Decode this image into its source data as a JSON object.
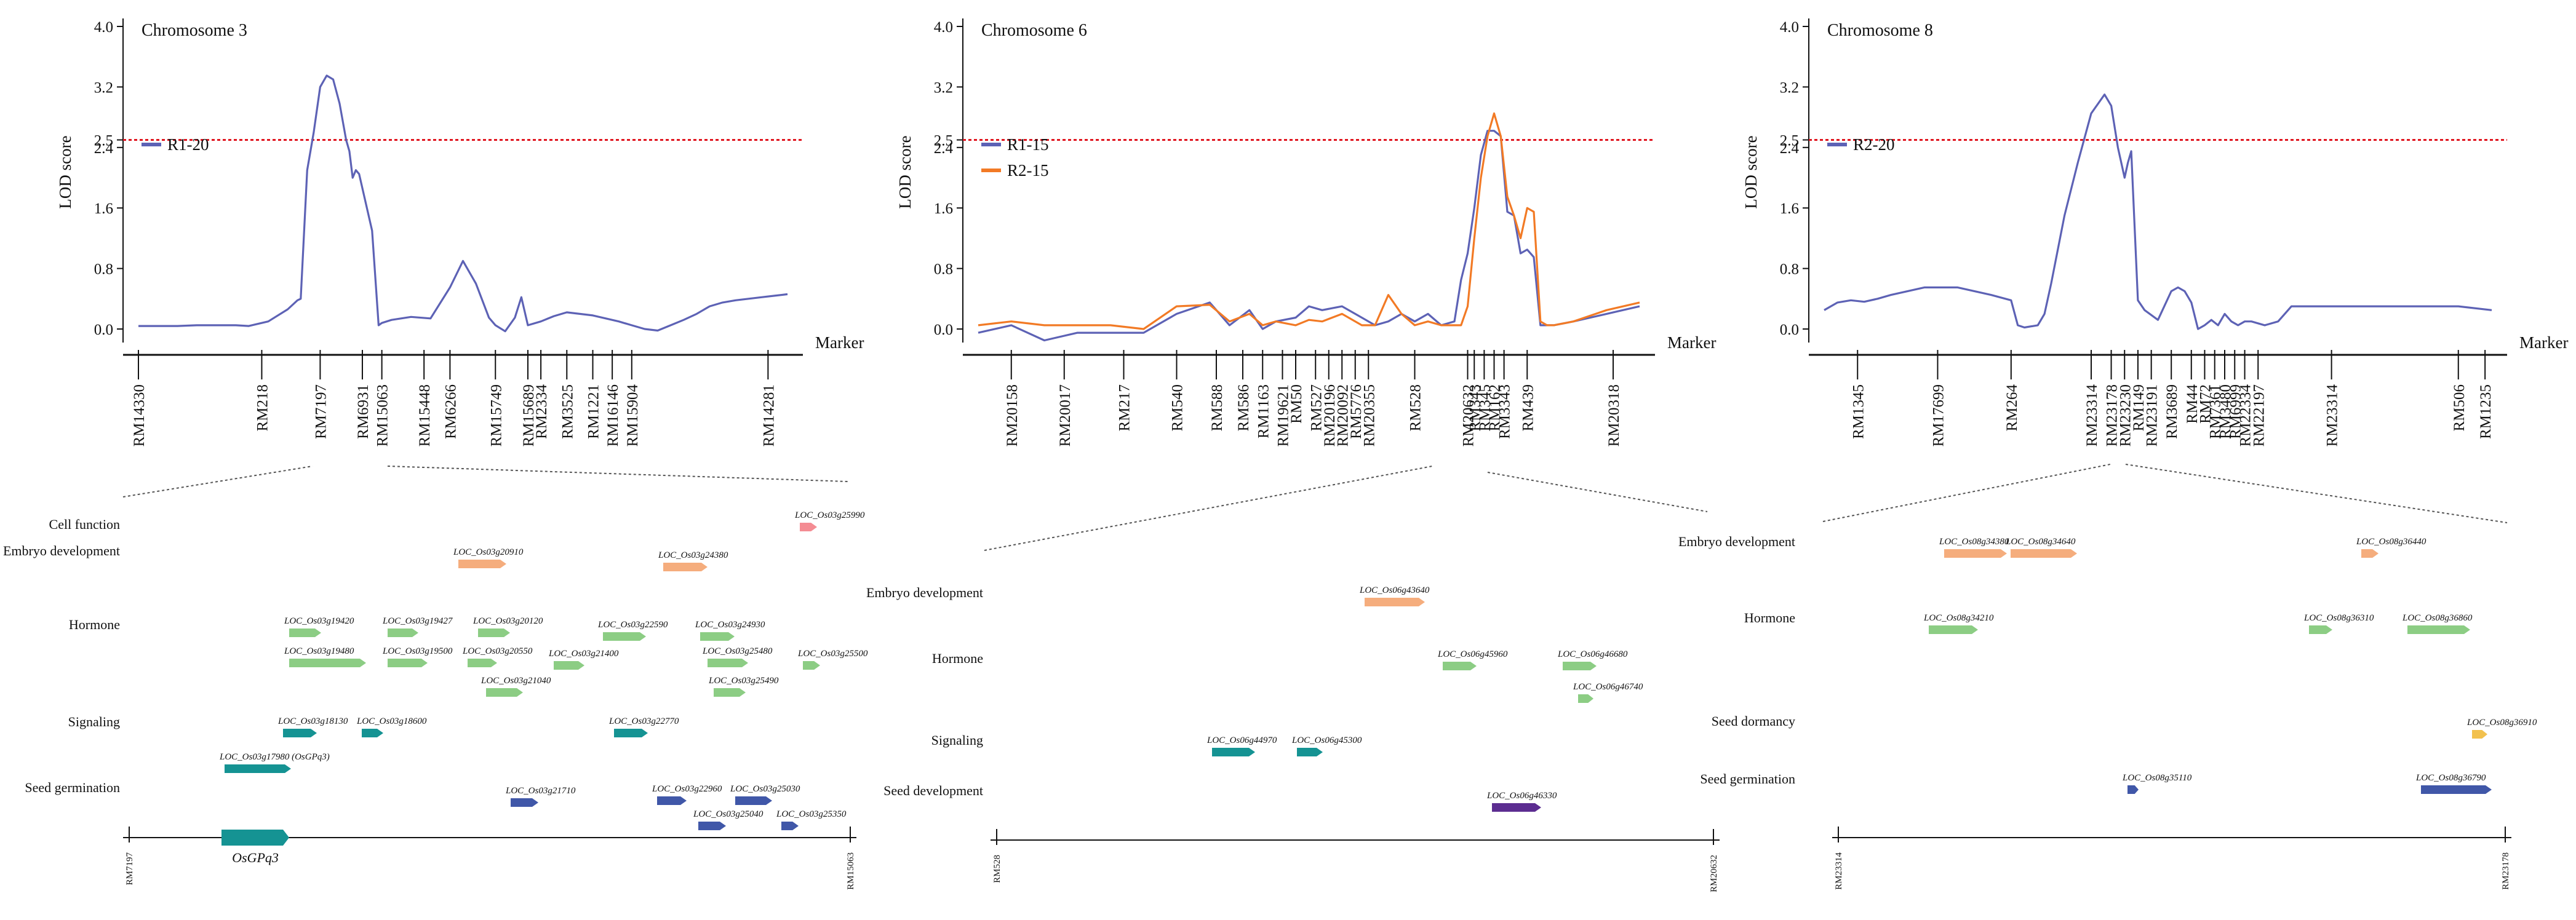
{
  "chart_data": [
    {
      "type": "line",
      "panel_label": "Chromosome 3",
      "ylabel": "LOD score",
      "xlabel": "Marker",
      "ylim": [
        -0.2,
        4.0
      ],
      "yticks": [
        "4.0",
        "3.2",
        "2.5",
        "2.4",
        "1.6",
        "0.8",
        "0.0"
      ],
      "ytick_values": [
        4.0,
        3.2,
        2.5,
        2.4,
        1.6,
        0.8,
        0.0
      ],
      "threshold": 2.5,
      "series": [
        {
          "name": "R1-20",
          "color": "#5d62b5",
          "x": [
            0,
            0.03,
            0.06,
            0.09,
            0.12,
            0.15,
            0.17,
            0.2,
            0.23,
            0.245,
            0.25,
            0.26,
            0.27,
            0.28,
            0.29,
            0.3,
            0.31,
            0.32,
            0.325,
            0.33,
            0.335,
            0.34,
            0.36,
            0.37,
            0.375,
            0.39,
            0.42,
            0.45,
            0.48,
            0.5,
            0.52,
            0.54,
            0.55,
            0.565,
            0.58,
            0.59,
            0.6,
            0.62,
            0.64,
            0.66,
            0.68,
            0.7,
            0.72,
            0.74,
            0.76,
            0.78,
            0.8,
            0.82,
            0.84,
            0.86,
            0.88,
            0.9,
            0.92,
            0.94,
            0.96,
            0.98,
            1.0
          ],
          "y": [
            0.04,
            0.04,
            0.04,
            0.05,
            0.05,
            0.05,
            0.04,
            0.1,
            0.26,
            0.38,
            0.4,
            2.1,
            2.6,
            3.2,
            3.35,
            3.3,
            2.98,
            2.5,
            2.35,
            2.0,
            2.1,
            2.05,
            1.3,
            0.05,
            0.08,
            0.12,
            0.16,
            0.14,
            0.55,
            0.9,
            0.6,
            0.15,
            0.05,
            -0.03,
            0.15,
            0.42,
            0.05,
            0.1,
            0.17,
            0.22,
            0.2,
            0.18,
            0.14,
            0.1,
            0.05,
            0.0,
            -0.02,
            0.05,
            0.12,
            0.2,
            0.3,
            0.35,
            0.38,
            0.4,
            0.42,
            0.44,
            0.46
          ]
        }
      ],
      "markers": [
        "RM14330",
        "RM218",
        "RM7197",
        "RM6931",
        "RM15063",
        "RM15448",
        "RM6266",
        "RM15749",
        "RM15689",
        "RM2334",
        "RM3525",
        "RM1221",
        "RM16146",
        "RM15904",
        "RM14281"
      ],
      "marker_positions": [
        0.0,
        0.19,
        0.28,
        0.345,
        0.375,
        0.44,
        0.48,
        0.55,
        0.6,
        0.62,
        0.66,
        0.7,
        0.73,
        0.76,
        0.97
      ]
    },
    {
      "type": "line",
      "panel_label": "Chromosome 6",
      "ylabel": "LOD score",
      "xlabel": "Marker",
      "ylim": [
        -0.2,
        4.0
      ],
      "yticks": [
        "4.0",
        "3.2",
        "2.5",
        "2.4",
        "1.6",
        "0.8",
        "0.0"
      ],
      "ytick_values": [
        4.0,
        3.2,
        2.5,
        2.4,
        1.6,
        0.8,
        0.0
      ],
      "threshold": 2.5,
      "series": [
        {
          "name": "R1-15",
          "color": "#5d62b5",
          "x": [
            0,
            0.05,
            0.1,
            0.15,
            0.2,
            0.25,
            0.3,
            0.35,
            0.38,
            0.41,
            0.43,
            0.45,
            0.48,
            0.5,
            0.52,
            0.55,
            0.58,
            0.6,
            0.62,
            0.64,
            0.66,
            0.68,
            0.7,
            0.72,
            0.73,
            0.74,
            0.75,
            0.76,
            0.77,
            0.78,
            0.79,
            0.8,
            0.81,
            0.82,
            0.83,
            0.84,
            0.85,
            0.86,
            0.87,
            0.9,
            0.95,
            1.0
          ],
          "y": [
            -0.05,
            0.05,
            -0.15,
            -0.05,
            -0.05,
            -0.05,
            0.2,
            0.35,
            0.05,
            0.25,
            0.0,
            0.1,
            0.15,
            0.3,
            0.25,
            0.3,
            0.15,
            0.05,
            0.1,
            0.2,
            0.1,
            0.2,
            0.05,
            0.1,
            0.65,
            1.0,
            1.6,
            2.3,
            2.62,
            2.62,
            2.55,
            1.55,
            1.5,
            1.0,
            1.05,
            0.95,
            0.05,
            0.05,
            0.05,
            0.1,
            0.2,
            0.3
          ]
        },
        {
          "name": "R2-15",
          "color": "#f27a25",
          "x": [
            0,
            0.05,
            0.1,
            0.15,
            0.2,
            0.25,
            0.3,
            0.35,
            0.38,
            0.41,
            0.43,
            0.45,
            0.48,
            0.5,
            0.52,
            0.55,
            0.58,
            0.6,
            0.62,
            0.64,
            0.66,
            0.68,
            0.7,
            0.72,
            0.73,
            0.74,
            0.75,
            0.76,
            0.77,
            0.78,
            0.79,
            0.8,
            0.81,
            0.82,
            0.83,
            0.84,
            0.85,
            0.86,
            0.87,
            0.9,
            0.95,
            1.0
          ],
          "y": [
            0.05,
            0.1,
            0.05,
            0.05,
            0.05,
            0.0,
            0.3,
            0.32,
            0.1,
            0.2,
            0.05,
            0.1,
            0.05,
            0.12,
            0.1,
            0.2,
            0.05,
            0.05,
            0.45,
            0.2,
            0.05,
            0.1,
            0.05,
            0.05,
            0.05,
            0.3,
            1.2,
            2.0,
            2.55,
            2.85,
            2.55,
            1.75,
            1.5,
            1.2,
            1.6,
            1.55,
            0.1,
            0.05,
            0.05,
            0.1,
            0.25,
            0.35
          ]
        }
      ],
      "markers": [
        "RM20158",
        "RM20017",
        "RM217",
        "RM540",
        "RM588",
        "RM586",
        "RM1163",
        "RM19621",
        "RM50",
        "RM527",
        "RM20196",
        "RM20092",
        "RM5776",
        "RM20355",
        "RM528",
        "RM20632",
        "RM343",
        "RM345",
        "RM162",
        "RM3343",
        "RM439",
        "RM20318"
      ],
      "marker_positions": [
        0.05,
        0.13,
        0.22,
        0.3,
        0.36,
        0.4,
        0.43,
        0.46,
        0.48,
        0.51,
        0.53,
        0.55,
        0.57,
        0.59,
        0.66,
        0.74,
        0.75,
        0.765,
        0.78,
        0.795,
        0.83,
        0.96
      ]
    },
    {
      "type": "line",
      "panel_label": "Chromosome 8",
      "ylabel": "LOD score",
      "xlabel": "Marker",
      "ylim": [
        -0.2,
        4.0
      ],
      "yticks": [
        "4.0",
        "3.2",
        "2.5",
        "2.4",
        "1.6",
        "0.8",
        "0.0"
      ],
      "ytick_values": [
        4.0,
        3.2,
        2.5,
        2.4,
        1.6,
        0.8,
        0.0
      ],
      "threshold": 2.5,
      "series": [
        {
          "name": "R2-20",
          "color": "#5d62b5",
          "x": [
            0,
            0.02,
            0.04,
            0.06,
            0.08,
            0.1,
            0.15,
            0.2,
            0.25,
            0.28,
            0.29,
            0.3,
            0.32,
            0.33,
            0.34,
            0.36,
            0.38,
            0.4,
            0.42,
            0.43,
            0.44,
            0.45,
            0.455,
            0.46,
            0.47,
            0.48,
            0.5,
            0.52,
            0.53,
            0.54,
            0.55,
            0.56,
            0.57,
            0.58,
            0.59,
            0.6,
            0.61,
            0.62,
            0.63,
            0.64,
            0.66,
            0.68,
            0.7,
            0.75,
            0.8,
            0.85,
            0.9,
            0.95,
            1.0
          ],
          "y": [
            0.25,
            0.35,
            0.38,
            0.36,
            0.4,
            0.45,
            0.55,
            0.55,
            0.45,
            0.38,
            0.05,
            0.02,
            0.05,
            0.2,
            0.6,
            1.5,
            2.2,
            2.85,
            3.1,
            2.95,
            2.4,
            2.0,
            2.2,
            2.35,
            0.38,
            0.25,
            0.12,
            0.5,
            0.55,
            0.5,
            0.35,
            0.0,
            0.05,
            0.12,
            0.05,
            0.2,
            0.1,
            0.05,
            0.1,
            0.1,
            0.05,
            0.1,
            0.3,
            0.3,
            0.3,
            0.3,
            0.3,
            0.3,
            0.25
          ]
        }
      ],
      "markers": [
        "RM1345",
        "RM17699",
        "RM264",
        "RM23314",
        "RM23178",
        "RM23230",
        "RM149",
        "RM23191",
        "RM3689",
        "RM44",
        "RM72",
        "RM7361",
        "RM3480",
        "RM6999",
        "RM22334",
        "RM22197",
        "RM23314",
        "RM506",
        "RM1235"
      ],
      "marker_positions": [
        0.05,
        0.17,
        0.28,
        0.4,
        0.43,
        0.45,
        0.47,
        0.49,
        0.52,
        0.55,
        0.57,
        0.585,
        0.6,
        0.615,
        0.63,
        0.65,
        0.76,
        0.95,
        0.99
      ]
    }
  ],
  "gene_panels": [
    {
      "region_left": "RM7197",
      "region_right": "RM15063",
      "gene_name": "OsGPq3",
      "categories": [
        "Cell function",
        "Embryo development",
        "Hormone",
        "Signaling",
        "Seed germination"
      ],
      "genes": [
        {
          "label": "LOC_Os03g25990",
          "category": "Cell function",
          "color": "#f48c93"
        },
        {
          "label": "LOC_Os03g20910",
          "category": "Embryo development",
          "color": "#f5ad7d"
        },
        {
          "label": "LOC_Os03g24380",
          "category": "Embryo development",
          "color": "#f5ad7d"
        },
        {
          "label": "LOC_Os03g19420",
          "category": "Hormone",
          "color": "#8ccd84"
        },
        {
          "label": "LOC_Os03g19427",
          "category": "Hormone",
          "color": "#8ccd84"
        },
        {
          "label": "LOC_Os03g20120",
          "category": "Hormone",
          "color": "#8ccd84"
        },
        {
          "label": "LOC_Os03g22590",
          "category": "Hormone",
          "color": "#8ccd84"
        },
        {
          "label": "LOC_Os03g24930",
          "category": "Hormone",
          "color": "#8ccd84"
        },
        {
          "label": "LOC_Os03g19480",
          "category": "Hormone",
          "color": "#8ccd84"
        },
        {
          "label": "LOC_Os03g19500",
          "category": "Hormone",
          "color": "#8ccd84"
        },
        {
          "label": "LOC_Os03g20550",
          "category": "Hormone",
          "color": "#8ccd84"
        },
        {
          "label": "LOC_Os03g21400",
          "category": "Hormone",
          "color": "#8ccd84"
        },
        {
          "label": "LOC_Os03g25480",
          "category": "Hormone",
          "color": "#8ccd84"
        },
        {
          "label": "LOC_Os03g25500",
          "category": "Hormone",
          "color": "#8ccd84"
        },
        {
          "label": "LOC_Os03g21040",
          "category": "Hormone",
          "color": "#8ccd84"
        },
        {
          "label": "LOC_Os03g25490",
          "category": "Hormone",
          "color": "#8ccd84"
        },
        {
          "label": "LOC_Os03g18130",
          "category": "Signaling",
          "color": "#159393"
        },
        {
          "label": "LOC_Os03g18600",
          "category": "Signaling",
          "color": "#159393"
        },
        {
          "label": "LOC_Os03g22770",
          "category": "Signaling",
          "color": "#159393"
        },
        {
          "label": "LOC_Os03g17980 (OsGPq3)",
          "category": "Signaling",
          "color": "#159393"
        },
        {
          "label": "LOC_Os03g21710",
          "category": "Seed germination",
          "color": "#4057a8"
        },
        {
          "label": "LOC_Os03g22960",
          "category": "Seed germination",
          "color": "#4057a8"
        },
        {
          "label": "LOC_Os03g25030",
          "category": "Seed germination",
          "color": "#4057a8"
        },
        {
          "label": "LOC_Os03g25040",
          "category": "Seed germination",
          "color": "#4057a8"
        },
        {
          "label": "LOC_Os03g25350",
          "category": "Seed germination",
          "color": "#4057a8"
        }
      ]
    },
    {
      "region_left": "RM528",
      "region_right": "RM20632",
      "categories": [
        "Embryo development",
        "Hormone",
        "Signaling",
        "Seed development"
      ],
      "genes": [
        {
          "label": "LOC_Os06g43640",
          "category": "Embryo development",
          "color": "#f5ad7d"
        },
        {
          "label": "LOC_Os06g45960",
          "category": "Hormone",
          "color": "#8ccd84"
        },
        {
          "label": "LOC_Os06g46680",
          "category": "Hormone",
          "color": "#8ccd84"
        },
        {
          "label": "LOC_Os06g46740",
          "category": "Hormone",
          "color": "#8ccd84"
        },
        {
          "label": "LOC_Os06g44970",
          "category": "Signaling",
          "color": "#159393"
        },
        {
          "label": "LOC_Os06g45300",
          "category": "Signaling",
          "color": "#159393"
        },
        {
          "label": "LOC_Os06g46330",
          "category": "Seed development",
          "color": "#5c2d91"
        }
      ]
    },
    {
      "region_left": "RM23314",
      "region_right": "RM23178",
      "categories": [
        "Embryo development",
        "Hormone",
        "Seed dormancy",
        "Seed germination"
      ],
      "genes": [
        {
          "label": "LOC_Os08g34380",
          "category": "Embryo development",
          "color": "#f5ad7d"
        },
        {
          "label": "LOC_Os08g34640",
          "category": "Embryo development",
          "color": "#f5ad7d"
        },
        {
          "label": "LOC_Os08g36440",
          "category": "Embryo development",
          "color": "#f5ad7d"
        },
        {
          "label": "LOC_Os08g34210",
          "category": "Hormone",
          "color": "#8ccd84"
        },
        {
          "label": "LOC_Os08g36310",
          "category": "Hormone",
          "color": "#8ccd84"
        },
        {
          "label": "LOC_Os08g36860",
          "category": "Hormone",
          "color": "#8ccd84"
        },
        {
          "label": "LOC_Os08g36910",
          "category": "Seed dormancy",
          "color": "#f2c14e"
        },
        {
          "label": "LOC_Os08g35110",
          "category": "Seed germination",
          "color": "#4057a8"
        },
        {
          "label": "LOC_Os08g36790",
          "category": "Seed germination",
          "color": "#4057a8"
        }
      ]
    }
  ],
  "colors": {
    "threshold": "#e0141e",
    "axis": "#111111"
  }
}
